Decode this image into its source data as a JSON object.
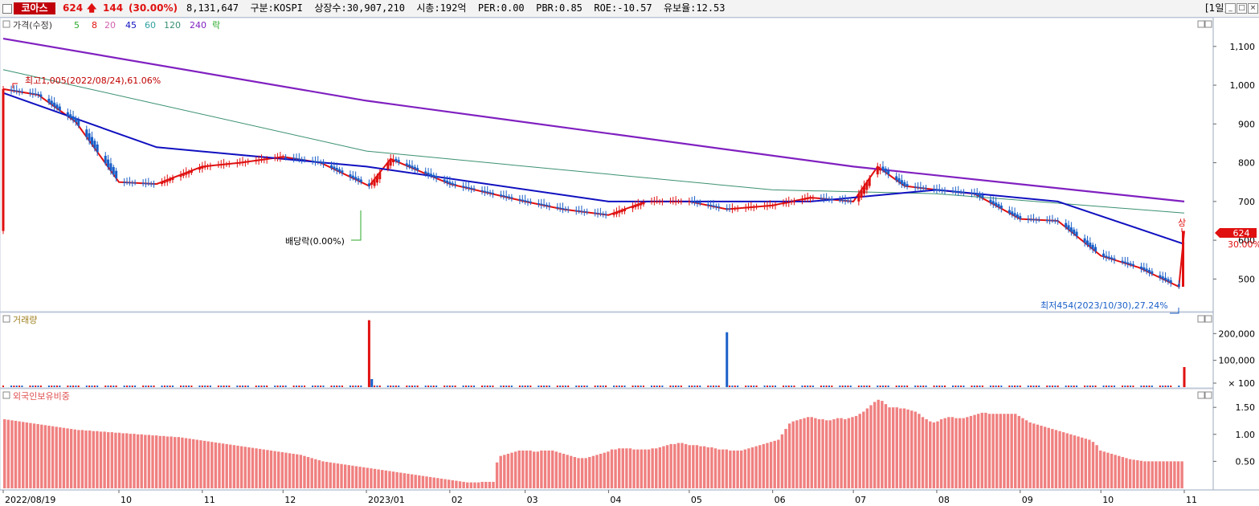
{
  "header": {
    "stock_name": "코아스",
    "price": "624",
    "arrow": "🡅",
    "change": "144",
    "change_pct": "(30.00%)",
    "info": "8,131,647  구분:KOSPI  상장수:30,907,210  시총:192억  PER:0.00  PBR:0.85  ROE:-10.57  유보율:12.53",
    "period": "[1일]",
    "win_minimize": "_",
    "win_restore": "□",
    "win_close": "×"
  },
  "legend": {
    "price": "가격(수정)",
    "ma": [
      "5",
      "8",
      "20",
      "45",
      "60",
      "120",
      "240"
    ],
    "ex": "락",
    "volume": "거래량",
    "foreign": "외국인보유비중"
  },
  "annotations": {
    "high": "최고1,005(2022/08/24),61.06%",
    "dividend": "배당락(0.00%)",
    "low": "최저454(2023/10/30),27.24%",
    "upper_limit": "상",
    "last_price": "624",
    "last_pct": "30.00%"
  },
  "colors": {
    "up": "#e01010",
    "down": "#1a5fc8",
    "ma5": "#2aa82a",
    "ma8": "#e01010",
    "ma20": "#d060b0",
    "ma45": "#1010c0",
    "ma60": "#30a0a0",
    "ma120": "#3a9070",
    "ma240": "#8020c0",
    "foreign_bar": "#f08080"
  },
  "chart_data": [
    {
      "type": "line",
      "title": "가격(수정)",
      "x_ticks": [
        "2022/08/19",
        "10",
        "11",
        "12",
        "2023/01",
        "02",
        "03",
        "04",
        "05",
        "06",
        "07",
        "08",
        "09",
        "10",
        "11"
      ],
      "y_ticks": [
        500,
        600,
        700,
        800,
        900,
        1000,
        1100
      ],
      "y_tick_labels": [
        "500",
        "600",
        "700",
        "800",
        "900",
        "1,000",
        "1,100"
      ],
      "ylim": [
        420,
        1170
      ],
      "series": [
        {
          "name": "가격(수정)",
          "x": [
            "2022/08/19",
            "2022/09/01",
            "2022/09/15",
            "2022/10/01",
            "2022/10/15",
            "2022/11/01",
            "2022/11/15",
            "2022/12/01",
            "2022/12/15",
            "2023/01/02",
            "2023/01/10",
            "2023/02/01",
            "2023/03/01",
            "2023/03/15",
            "2023/04/01",
            "2023/04/15",
            "2023/05/01",
            "2023/05/15",
            "2023/06/01",
            "2023/06/15",
            "2023/07/01",
            "2023/07/10",
            "2023/07/20",
            "2023/08/01",
            "2023/08/15",
            "2023/09/01",
            "2023/09/15",
            "2023/10/01",
            "2023/10/15",
            "2023/10/30",
            "2023/11/01"
          ],
          "values": [
            990,
            975,
            905,
            750,
            745,
            790,
            800,
            815,
            800,
            740,
            810,
            745,
            700,
            680,
            665,
            700,
            700,
            680,
            690,
            710,
            700,
            790,
            740,
            730,
            720,
            655,
            650,
            560,
            530,
            480,
            624
          ]
        },
        {
          "name": "240",
          "x": [
            "2022/08/19",
            "2023/01/01",
            "2023/07/01",
            "2023/11/01"
          ],
          "values": [
            1120,
            960,
            790,
            700
          ]
        },
        {
          "name": "120",
          "x": [
            "2022/08/19",
            "2023/01/01",
            "2023/06/01",
            "2023/08/01",
            "2023/11/01"
          ],
          "values": [
            1040,
            830,
            730,
            720,
            670
          ]
        },
        {
          "name": "45",
          "x": [
            "2022/08/19",
            "2022/10/15",
            "2023/01/01",
            "2023/04/01",
            "2023/06/15",
            "2023/08/01",
            "2023/09/15",
            "2023/11/01"
          ],
          "values": [
            980,
            840,
            790,
            700,
            700,
            730,
            700,
            590
          ]
        }
      ]
    },
    {
      "type": "bar",
      "title": "거래량",
      "y_ticks": [
        "100",
        "100,000",
        "200,000"
      ],
      "unit": "× 100",
      "series": [
        {
          "name": "거래량",
          "x": [
            "2023/01/02",
            "2023/01/03",
            "2023/05/15",
            "2023/11/01"
          ],
          "values": [
            250000,
            30000,
            205000,
            75000
          ]
        }
      ]
    },
    {
      "type": "bar",
      "title": "외국인보유비중",
      "y_ticks": [
        "0.50",
        "1.00",
        "1.50"
      ],
      "ylim": [
        0,
        1.8
      ],
      "series": [
        {
          "name": "외국인보유비중",
          "values": [
            1.28,
            1.27,
            1.26,
            1.25,
            1.24,
            1.23,
            1.22,
            1.21,
            1.2,
            1.19,
            1.18,
            1.17,
            1.16,
            1.15,
            1.14,
            1.13,
            1.12,
            1.11,
            1.1,
            1.09,
            1.08,
            1.08,
            1.07,
            1.07,
            1.06,
            1.06,
            1.05,
            1.05,
            1.04,
            1.04,
            1.03,
            1.03,
            1.02,
            1.02,
            1.01,
            1.01,
            1.0,
            1.0,
            0.99,
            0.99,
            0.98,
            0.98,
            0.97,
            0.97,
            0.96,
            0.96,
            0.95,
            0.95,
            0.94,
            0.93,
            0.92,
            0.91,
            0.9,
            0.89,
            0.88,
            0.87,
            0.86,
            0.85,
            0.84,
            0.83,
            0.82,
            0.81,
            0.8,
            0.79,
            0.78,
            0.77,
            0.76,
            0.75,
            0.74,
            0.73,
            0.72,
            0.71,
            0.7,
            0.69,
            0.68,
            0.67,
            0.66,
            0.65,
            0.64,
            0.63,
            0.62,
            0.6,
            0.58,
            0.56,
            0.54,
            0.52,
            0.5,
            0.49,
            0.48,
            0.47,
            0.46,
            0.45,
            0.44,
            0.43,
            0.42,
            0.41,
            0.4,
            0.39,
            0.38,
            0.37,
            0.36,
            0.35,
            0.34,
            0.33,
            0.32,
            0.31,
            0.3,
            0.29,
            0.28,
            0.27,
            0.26,
            0.25,
            0.24,
            0.23,
            0.22,
            0.21,
            0.2,
            0.19,
            0.18,
            0.17,
            0.16,
            0.15,
            0.14,
            0.13,
            0.12,
            0.11,
            0.11,
            0.11,
            0.11,
            0.12,
            0.12,
            0.12,
            0.12,
            0.48,
            0.6,
            0.62,
            0.64,
            0.66,
            0.68,
            0.7,
            0.7,
            0.7,
            0.7,
            0.68,
            0.68,
            0.7,
            0.7,
            0.7,
            0.7,
            0.68,
            0.66,
            0.64,
            0.62,
            0.6,
            0.58,
            0.56,
            0.56,
            0.56,
            0.58,
            0.6,
            0.62,
            0.64,
            0.66,
            0.68,
            0.72,
            0.72,
            0.74,
            0.74,
            0.74,
            0.74,
            0.72,
            0.72,
            0.72,
            0.72,
            0.72,
            0.74,
            0.74,
            0.76,
            0.78,
            0.8,
            0.82,
            0.82,
            0.84,
            0.84,
            0.82,
            0.8,
            0.8,
            0.8,
            0.78,
            0.78,
            0.76,
            0.76,
            0.74,
            0.72,
            0.72,
            0.72,
            0.7,
            0.7,
            0.7,
            0.7,
            0.72,
            0.74,
            0.76,
            0.78,
            0.8,
            0.82,
            0.84,
            0.86,
            0.88,
            0.9,
            1.0,
            1.1,
            1.2,
            1.24,
            1.26,
            1.28,
            1.3,
            1.32,
            1.32,
            1.3,
            1.28,
            1.28,
            1.26,
            1.26,
            1.28,
            1.3,
            1.3,
            1.28,
            1.3,
            1.32,
            1.34,
            1.38,
            1.42,
            1.48,
            1.54,
            1.6,
            1.64,
            1.62,
            1.56,
            1.5,
            1.5,
            1.5,
            1.48,
            1.48,
            1.46,
            1.44,
            1.42,
            1.38,
            1.32,
            1.28,
            1.24,
            1.22,
            1.24,
            1.28,
            1.3,
            1.32,
            1.32,
            1.3,
            1.3,
            1.3,
            1.32,
            1.34,
            1.36,
            1.38,
            1.4,
            1.4,
            1.38,
            1.38,
            1.38,
            1.38,
            1.38,
            1.38,
            1.38,
            1.38,
            1.34,
            1.3,
            1.26,
            1.22,
            1.2,
            1.18,
            1.16,
            1.14,
            1.12,
            1.1,
            1.08,
            1.06,
            1.04,
            1.02,
            1.0,
            0.98,
            0.96,
            0.94,
            0.92,
            0.9,
            0.86,
            0.8,
            0.7,
            0.68,
            0.66,
            0.64,
            0.62,
            0.6,
            0.58,
            0.56,
            0.54,
            0.53,
            0.52,
            0.51,
            0.5,
            0.5,
            0.5,
            0.5,
            0.5,
            0.5,
            0.5,
            0.5,
            0.5,
            0.5,
            0.5
          ]
        }
      ]
    }
  ]
}
